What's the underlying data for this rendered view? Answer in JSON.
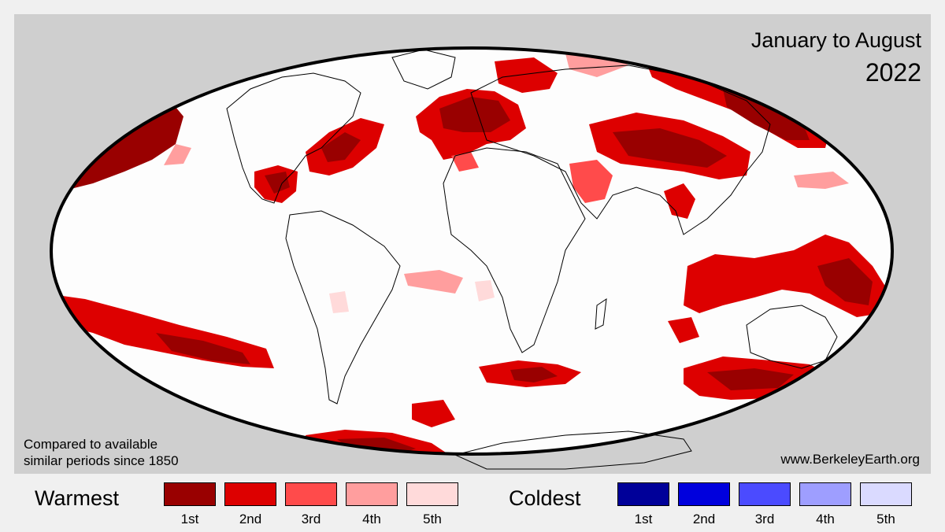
{
  "title": {
    "line1": "January to August",
    "line2": "2022"
  },
  "note": {
    "line1": "Compared to available",
    "line2": "similar periods since 1850"
  },
  "source": "www.BerkeleyEarth.org",
  "legend": {
    "warm_label": "Warmest",
    "cold_label": "Coldest",
    "warm": [
      {
        "rank": "1st",
        "color": "#990000"
      },
      {
        "rank": "2nd",
        "color": "#dd0000"
      },
      {
        "rank": "3rd",
        "color": "#ff4b4b"
      },
      {
        "rank": "4th",
        "color": "#ff9e9e"
      },
      {
        "rank": "5th",
        "color": "#ffdada"
      }
    ],
    "cold": [
      {
        "rank": "1st",
        "color": "#000099"
      },
      {
        "rank": "2nd",
        "color": "#0000dd"
      },
      {
        "rank": "3rd",
        "color": "#4b4bff"
      },
      {
        "rank": "4th",
        "color": "#9e9eff"
      },
      {
        "rank": "5th",
        "color": "#dadaff"
      }
    ]
  },
  "colors": {
    "panel": "#cfcfcf",
    "ocean_land": "#fdfdfd",
    "border": "#000000"
  }
}
